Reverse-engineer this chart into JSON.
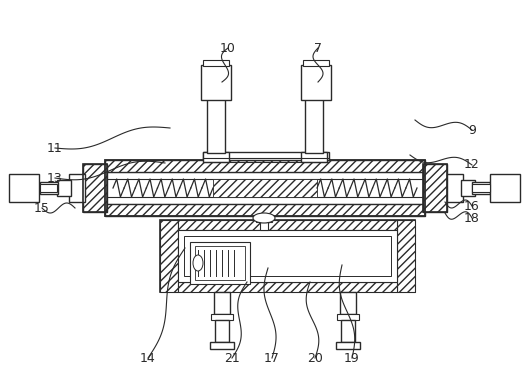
{
  "bg_color": "#ffffff",
  "line_color": "#2a2a2a",
  "fig_width": 5.29,
  "fig_height": 3.9,
  "labels_info": [
    [
      "14",
      148,
      358,
      185,
      248
    ],
    [
      "21",
      232,
      358,
      247,
      282
    ],
    [
      "17",
      272,
      358,
      268,
      268
    ],
    [
      "20",
      315,
      358,
      310,
      282
    ],
    [
      "19",
      352,
      358,
      342,
      265
    ],
    [
      "15",
      42,
      208,
      75,
      208
    ],
    [
      "18",
      472,
      218,
      445,
      213
    ],
    [
      "16",
      472,
      206,
      445,
      202
    ],
    [
      "13",
      55,
      178,
      165,
      163
    ],
    [
      "12",
      472,
      165,
      410,
      155
    ],
    [
      "11",
      55,
      148,
      170,
      128
    ],
    [
      "9",
      472,
      130,
      415,
      120
    ],
    [
      "10",
      228,
      48,
      222,
      82
    ],
    [
      "7",
      318,
      48,
      318,
      82
    ]
  ]
}
